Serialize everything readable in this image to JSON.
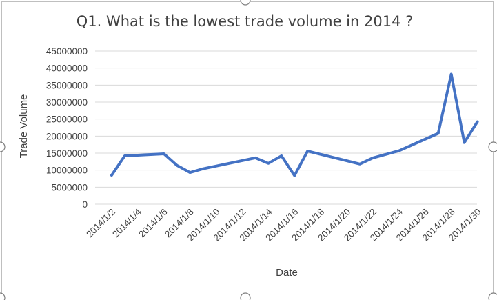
{
  "chart_data": {
    "type": "line",
    "title": "Q1. What is the lowest trade volume in 2014 ?",
    "xlabel": "Date",
    "ylabel": "Trade Volume",
    "ylim": [
      0,
      45000000
    ],
    "yticks": [
      "0",
      "5000000",
      "10000000",
      "15000000",
      "20000000",
      "25000000",
      "30000000",
      "35000000",
      "40000000",
      "45000000"
    ],
    "xticks": [
      "2014/1/2",
      "2014/1/4",
      "2014/1/6",
      "2014/1/8",
      "2014/1/10",
      "2014/1/12",
      "2014/1/14",
      "2014/1/16",
      "2014/1/18",
      "2014/1/20",
      "2014/1/22",
      "2014/1/24",
      "2014/1/26",
      "2014/1/28",
      "2014/1/30"
    ],
    "grid": true,
    "legend": "none",
    "line_color": "#4472c4",
    "series": [
      {
        "x": [
          "2014/1/2",
          "2014/1/3",
          "2014/1/6",
          "2014/1/7",
          "2014/1/8",
          "2014/1/9",
          "2014/1/13",
          "2014/1/14",
          "2014/1/15",
          "2014/1/16",
          "2014/1/17",
          "2014/1/21",
          "2014/1/22",
          "2014/1/24",
          "2014/1/27",
          "2014/1/28",
          "2014/1/29",
          "2014/1/30"
        ],
        "values": [
          8500000,
          14200000,
          14800000,
          11400000,
          9300000,
          10400000,
          13600000,
          12000000,
          14200000,
          8400000,
          15600000,
          11800000,
          13600000,
          15700000,
          20800000,
          38200000,
          18100000,
          24200000
        ]
      }
    ]
  }
}
